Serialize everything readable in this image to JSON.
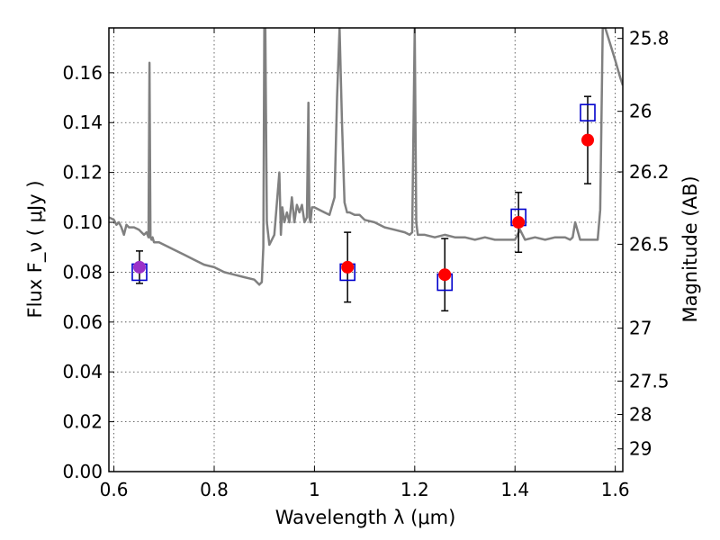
{
  "chart_data": {
    "type": "scatter",
    "title": "",
    "xlabel": "Wavelength  λ (μm)",
    "ylabel": "Flux  F_ν  ( μJy )",
    "y2label": "Magnitude (AB)",
    "xlim": [
      0.59,
      1.615
    ],
    "ylim": [
      0.0,
      0.178
    ],
    "x_ticks": [
      0.6,
      0.8,
      1.0,
      1.2,
      1.4,
      1.6
    ],
    "x_tick_labels": [
      "0.6",
      "0.8",
      "1",
      "1.2",
      "1.4",
      "1.6"
    ],
    "y_ticks": [
      0.0,
      0.02,
      0.04,
      0.06,
      0.08,
      0.1,
      0.12,
      0.14,
      0.16
    ],
    "y_tick_labels": [
      "0.00",
      "0.02",
      "0.04",
      "0.06",
      "0.08",
      "0.10",
      "0.12",
      "0.14",
      "0.16"
    ],
    "y2_ticks": [
      25.8,
      26,
      26.2,
      26.5,
      27,
      27.5,
      28,
      29
    ],
    "y2_tick_labels": [
      "25.8",
      "26",
      "26.2",
      "26.5",
      "27",
      "27.5",
      "28",
      "29"
    ],
    "grid": true,
    "legend": "none",
    "colors": {
      "model": "#808080",
      "model_points": "#0000cc",
      "observed": "#ff0000",
      "first_point": "#9b30c8",
      "errorbar": "#000000"
    },
    "series": [
      {
        "kind": "line",
        "x": [
          0.59,
          0.6,
          0.605,
          0.61,
          0.615,
          0.62,
          0.625,
          0.63,
          0.64,
          0.65,
          0.66,
          0.665,
          0.669,
          0.671,
          0.673,
          0.675,
          0.677,
          0.68,
          0.69,
          0.7,
          0.72,
          0.74,
          0.76,
          0.78,
          0.8,
          0.82,
          0.84,
          0.86,
          0.88,
          0.89,
          0.895,
          0.898,
          0.9,
          0.902,
          0.905,
          0.91,
          0.92,
          0.93,
          0.933,
          0.936,
          0.94,
          0.945,
          0.95,
          0.955,
          0.96,
          0.965,
          0.97,
          0.975,
          0.98,
          0.985,
          0.988,
          0.99,
          0.992,
          0.995,
          1.0,
          1.01,
          1.02,
          1.03,
          1.04,
          1.045,
          1.05,
          1.055,
          1.06,
          1.065,
          1.07,
          1.08,
          1.09,
          1.1,
          1.12,
          1.14,
          1.16,
          1.18,
          1.19,
          1.195,
          1.2,
          1.203,
          1.206,
          1.21,
          1.22,
          1.24,
          1.26,
          1.28,
          1.3,
          1.32,
          1.34,
          1.36,
          1.38,
          1.4,
          1.41,
          1.42,
          1.44,
          1.46,
          1.48,
          1.5,
          1.51,
          1.515,
          1.52,
          1.53,
          1.54,
          1.55,
          1.56,
          1.565,
          1.57,
          1.575,
          1.58,
          1.6,
          1.61,
          1.615
        ],
        "y": [
          0.102,
          0.101,
          0.099,
          0.1,
          0.098,
          0.095,
          0.099,
          0.098,
          0.098,
          0.097,
          0.095,
          0.096,
          0.094,
          0.164,
          0.094,
          0.093,
          0.094,
          0.092,
          0.092,
          0.091,
          0.089,
          0.087,
          0.085,
          0.083,
          0.082,
          0.08,
          0.079,
          0.078,
          0.077,
          0.075,
          0.076,
          0.09,
          0.178,
          0.178,
          0.1,
          0.091,
          0.095,
          0.12,
          0.095,
          0.106,
          0.1,
          0.104,
          0.1,
          0.11,
          0.1,
          0.107,
          0.104,
          0.107,
          0.1,
          0.102,
          0.148,
          0.102,
          0.1,
          0.106,
          0.106,
          0.105,
          0.104,
          0.103,
          0.11,
          0.15,
          0.178,
          0.14,
          0.108,
          0.104,
          0.104,
          0.103,
          0.103,
          0.101,
          0.1,
          0.098,
          0.097,
          0.096,
          0.095,
          0.096,
          0.178,
          0.1,
          0.095,
          0.095,
          0.095,
          0.094,
          0.095,
          0.094,
          0.094,
          0.093,
          0.094,
          0.093,
          0.093,
          0.093,
          0.097,
          0.093,
          0.094,
          0.093,
          0.094,
          0.094,
          0.093,
          0.094,
          0.1,
          0.093,
          0.093,
          0.093,
          0.093,
          0.093,
          0.105,
          0.178,
          0.178,
          0.165,
          0.158,
          0.155
        ]
      },
      {
        "kind": "model-points",
        "marker": "open-square",
        "x": [
          0.651,
          1.066,
          1.26,
          1.407,
          1.545
        ],
        "y": [
          0.08,
          0.08,
          0.076,
          0.102,
          0.144
        ]
      },
      {
        "kind": "observed",
        "marker": "filled-circle",
        "x": [
          0.651,
          1.066,
          1.26,
          1.407,
          1.545
        ],
        "y": [
          0.082,
          0.082,
          0.079,
          0.1,
          0.133
        ],
        "yerr": [
          0.0065,
          0.014,
          0.0145,
          0.012,
          0.0175
        ]
      }
    ]
  }
}
